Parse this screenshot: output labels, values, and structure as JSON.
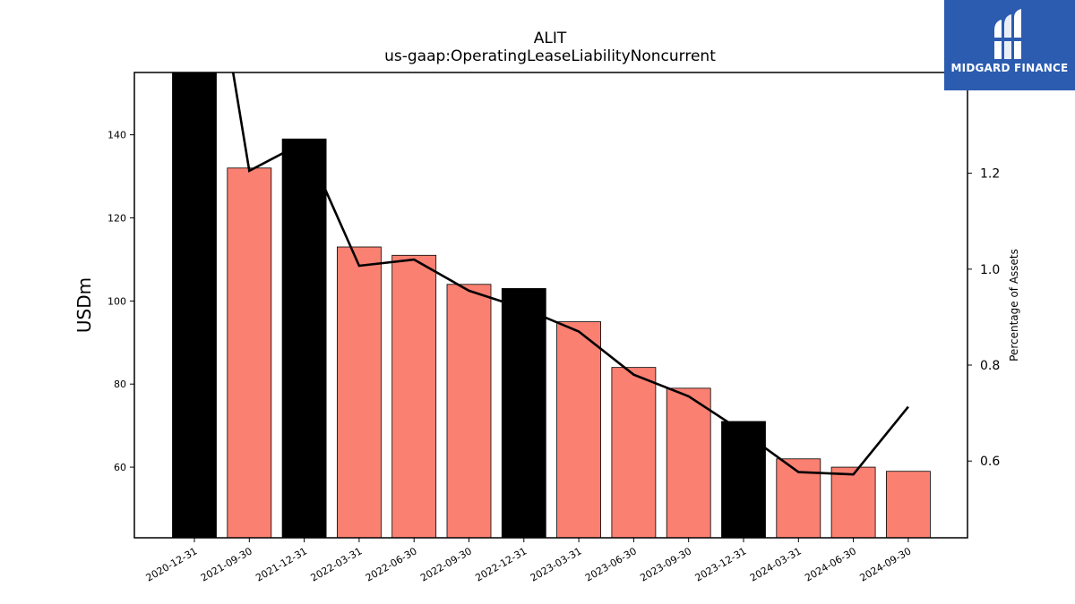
{
  "brand": {
    "name": "MIDGARD FINANCE",
    "bg_color": "#2b5cb0"
  },
  "chart_data": {
    "type": "bar",
    "title": "ALIT",
    "subtitle": "us-gaap:OperatingLeaseLiabilityNoncurrent",
    "ylabel": "USDm",
    "y2label": "Percentage of Assets",
    "categories": [
      "2020-12-31",
      "2021-09-30",
      "2021-12-31",
      "2022-03-31",
      "2022-06-30",
      "2022-09-30",
      "2022-12-31",
      "2023-03-31",
      "2023-06-30",
      "2023-09-30",
      "2023-12-31",
      "2024-03-31",
      "2024-06-30",
      "2024-09-30"
    ],
    "series": [
      {
        "values": [
          160,
          132,
          139,
          113,
          111,
          104,
          103,
          95,
          84,
          79,
          71,
          62,
          60,
          59
        ],
        "colors": [
          "#000000",
          "#fa8072",
          "#000000",
          "#fa8072",
          "#fa8072",
          "#fa8072",
          "#000000",
          "#fa8072",
          "#fa8072",
          "#fa8072",
          "#000000",
          "#fa8072",
          "#fa8072",
          "#fa8072"
        ],
        "axis": "left"
      },
      {
        "type": "line",
        "values": [
          1.9,
          1.205,
          1.265,
          1.007,
          1.02,
          0.955,
          0.918,
          0.87,
          0.78,
          0.735,
          0.66,
          0.577,
          0.572,
          0.713
        ],
        "color": "#000000",
        "axis": "right"
      }
    ],
    "ylim": [
      43,
      155
    ],
    "y2lim": [
      0.44,
      1.41
    ],
    "yticks": [
      60,
      80,
      100,
      120,
      140
    ],
    "y2ticks": [
      0.6,
      0.8,
      1.0,
      1.2
    ],
    "grid": false
  }
}
